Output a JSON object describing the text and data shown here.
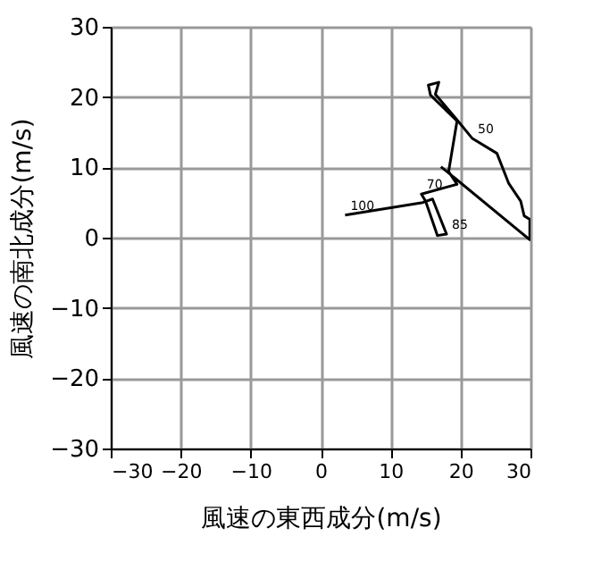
{
  "chart_data": {
    "type": "line",
    "xlabel": "風速の東西成分(m/s)",
    "ylabel": "風速の南北成分(m/s)",
    "x": [
      3.5,
      14.6,
      16.0,
      18.0,
      16.7,
      15.0,
      14.4,
      19.5,
      18.3,
      19.5,
      15.7,
      15.4,
      16.9,
      16.4,
      19.3,
      21.7,
      25.2,
      26.9,
      28.6,
      29.1,
      29.9,
      29.9,
      17.2
    ],
    "series": [
      {
        "color": "#000000",
        "values": [
          3.2,
          5.0,
          5.5,
          0.5,
          0.3,
          5.2,
          6.2,
          7.6,
          9.4,
          16.6,
          20.3,
          21.7,
          22.1,
          20.4,
          17.0,
          14.1,
          12.0,
          7.7,
          5.2,
          3.1,
          2.6,
          -0.3,
          10.1
        ]
      }
    ],
    "annotations": [
      {
        "text": "100",
        "x": 3.5,
        "y": 3.2
      },
      {
        "text": "70",
        "x": 14.4,
        "y": 6.2
      },
      {
        "text": "50",
        "x": 21.7,
        "y": 14.1
      },
      {
        "text": "85",
        "x": 18.0,
        "y": 0.5
      }
    ],
    "xlim": [
      -30,
      30
    ],
    "ylim": [
      -30,
      30
    ],
    "xticks": [
      -30,
      -20,
      -10,
      0,
      10,
      20,
      30
    ],
    "yticks": [
      -30,
      -20,
      -10,
      0,
      10,
      20,
      30
    ],
    "grid": true,
    "line_style": "solid"
  }
}
